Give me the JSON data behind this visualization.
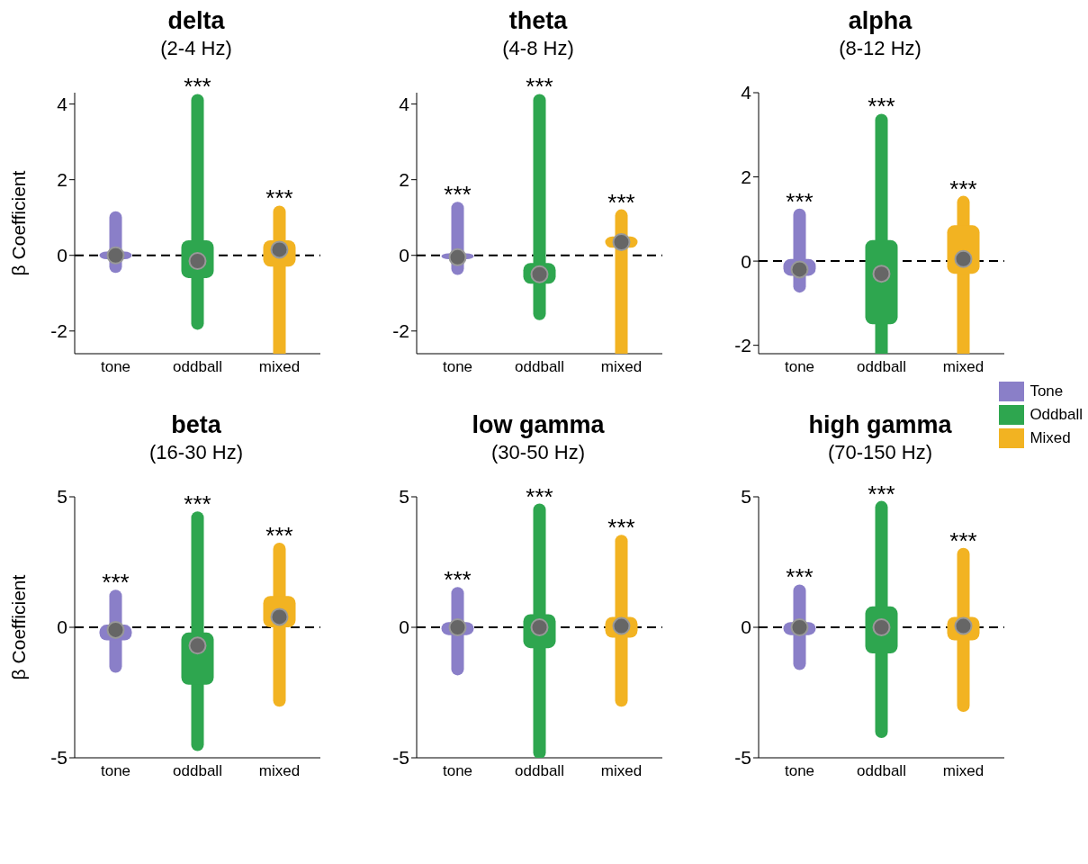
{
  "chart_data": [
    {
      "type": "box",
      "title": "delta",
      "subtitle": "(2-4 Hz)",
      "ylabel": "β Coefficient",
      "categories": [
        "tone",
        "oddball",
        "mixed"
      ],
      "ylim": [
        -2.6,
        4.3
      ],
      "yticks": [
        -2,
        0,
        2,
        4
      ],
      "series": [
        {
          "color": "#8a7fc8",
          "boxes": [
            {
              "low": -0.3,
              "q1": -0.1,
              "median": 0,
              "q3": 0.1,
              "high": 1.0
            },
            null,
            null
          ]
        },
        {
          "color": "#2ea64f",
          "boxes": [
            null,
            {
              "low": -1.8,
              "q1": -0.6,
              "median": -0.15,
              "q3": 0.4,
              "high": 4.1
            },
            null
          ]
        },
        {
          "color": "#f2b322",
          "boxes": [
            null,
            null,
            {
              "low": -2.6,
              "q1": -0.3,
              "median": 0.15,
              "q3": 0.4,
              "high": 1.15
            }
          ]
        }
      ],
      "ref_lines": [
        {
          "axis": "y",
          "value": 0,
          "line_style": "dashed"
        }
      ],
      "annotations": [
        {
          "text": "***",
          "x": "oddball",
          "y": 4.1
        },
        {
          "text": "***",
          "x": "mixed",
          "y": 1.15
        }
      ]
    },
    {
      "type": "box",
      "title": "theta",
      "subtitle": "(4-8 Hz)",
      "categories": [
        "tone",
        "oddball",
        "mixed"
      ],
      "ylim": [
        -2.6,
        4.3
      ],
      "yticks": [
        -2,
        0,
        2,
        4
      ],
      "series": [
        {
          "color": "#8a7fc8",
          "boxes": [
            {
              "low": -0.35,
              "q1": -0.1,
              "median": -0.05,
              "q3": 0.05,
              "high": 1.25
            },
            null,
            null
          ]
        },
        {
          "color": "#2ea64f",
          "boxes": [
            null,
            {
              "low": -1.55,
              "q1": -0.75,
              "median": -0.5,
              "q3": -0.2,
              "high": 4.1
            },
            null
          ]
        },
        {
          "color": "#f2b322",
          "boxes": [
            null,
            null,
            {
              "low": -2.6,
              "q1": 0.2,
              "median": 0.35,
              "q3": 0.5,
              "high": 1.05
            }
          ]
        }
      ],
      "ref_lines": [
        {
          "axis": "y",
          "value": 0,
          "line_style": "dashed"
        }
      ],
      "annotations": [
        {
          "text": "***",
          "x": "tone",
          "y": 1.25
        },
        {
          "text": "***",
          "x": "oddball",
          "y": 4.1
        },
        {
          "text": "***",
          "x": "mixed",
          "y": 1.05
        }
      ]
    },
    {
      "type": "box",
      "title": "alpha",
      "subtitle": "(8-12 Hz)",
      "categories": [
        "tone",
        "oddball",
        "mixed"
      ],
      "ylim": [
        -2.2,
        4
      ],
      "yticks": [
        -2,
        0,
        2,
        4
      ],
      "legend": "bottom right",
      "series": [
        {
          "name": "Tone",
          "color": "#8a7fc8",
          "boxes": [
            {
              "low": -0.6,
              "q1": -0.35,
              "median": -0.2,
              "q3": 0.05,
              "high": 1.1
            },
            null,
            null
          ]
        },
        {
          "name": "Oddball",
          "color": "#2ea64f",
          "boxes": [
            null,
            {
              "low": -2.2,
              "q1": -1.5,
              "median": -0.3,
              "q3": 0.5,
              "high": 3.35
            },
            null
          ]
        },
        {
          "name": "Mixed",
          "color": "#f2b322",
          "boxes": [
            null,
            null,
            {
              "low": -2.2,
              "q1": -0.3,
              "median": 0.05,
              "q3": 0.85,
              "high": 1.4
            }
          ]
        }
      ],
      "ref_lines": [
        {
          "axis": "y",
          "value": 0,
          "line_style": "dashed"
        }
      ],
      "annotations": [
        {
          "text": "***",
          "x": "tone",
          "y": 1.1
        },
        {
          "text": "***",
          "x": "oddball",
          "y": 3.35
        },
        {
          "text": "***",
          "x": "mixed",
          "y": 1.4
        }
      ]
    },
    {
      "type": "box",
      "title": "beta",
      "subtitle": "(16-30 Hz)",
      "ylabel": "β Coefficient",
      "categories": [
        "tone",
        "oddball",
        "mixed"
      ],
      "ylim": [
        -5,
        5
      ],
      "yticks": [
        -5,
        0,
        5
      ],
      "series": [
        {
          "color": "#8a7fc8",
          "boxes": [
            {
              "low": -1.5,
              "q1": -0.5,
              "median": -0.1,
              "q3": 0.1,
              "high": 1.2
            },
            null,
            null
          ]
        },
        {
          "color": "#2ea64f",
          "boxes": [
            null,
            {
              "low": -4.5,
              "q1": -2.2,
              "median": -0.7,
              "q3": -0.2,
              "high": 4.2
            },
            null
          ]
        },
        {
          "color": "#f2b322",
          "boxes": [
            null,
            null,
            {
              "low": -2.8,
              "q1": 0,
              "median": 0.4,
              "q3": 1.2,
              "high": 3.0
            }
          ]
        }
      ],
      "ref_lines": [
        {
          "axis": "y",
          "value": 0,
          "line_style": "dashed"
        }
      ],
      "annotations": [
        {
          "text": "***",
          "x": "tone",
          "y": 1.2
        },
        {
          "text": "***",
          "x": "oddball",
          "y": 4.2
        },
        {
          "text": "***",
          "x": "mixed",
          "y": 3.0
        }
      ]
    },
    {
      "type": "box",
      "title": "low gamma",
      "subtitle": "(30-50 Hz)",
      "categories": [
        "tone",
        "oddball",
        "mixed"
      ],
      "ylim": [
        -5,
        5
      ],
      "yticks": [
        -5,
        0,
        5
      ],
      "series": [
        {
          "color": "#8a7fc8",
          "boxes": [
            {
              "low": -1.6,
              "q1": -0.3,
              "median": 0,
              "q3": 0.2,
              "high": 1.3
            },
            null,
            null
          ]
        },
        {
          "color": "#2ea64f",
          "boxes": [
            null,
            {
              "low": -4.8,
              "q1": -0.8,
              "median": 0,
              "q3": 0.5,
              "high": 4.5
            },
            null
          ]
        },
        {
          "color": "#f2b322",
          "boxes": [
            null,
            null,
            {
              "low": -2.8,
              "q1": -0.4,
              "median": 0.05,
              "q3": 0.4,
              "high": 3.3
            }
          ]
        }
      ],
      "ref_lines": [
        {
          "axis": "y",
          "value": 0,
          "line_style": "dashed"
        }
      ],
      "annotations": [
        {
          "text": "***",
          "x": "tone",
          "y": 1.3
        },
        {
          "text": "***",
          "x": "oddball",
          "y": 4.5
        },
        {
          "text": "***",
          "x": "mixed",
          "y": 3.3
        }
      ]
    },
    {
      "type": "box",
      "title": "high gamma",
      "subtitle": "(70-150 Hz)",
      "categories": [
        "tone",
        "oddball",
        "mixed"
      ],
      "ylim": [
        -5,
        5
      ],
      "yticks": [
        -5,
        0,
        5
      ],
      "series": [
        {
          "color": "#8a7fc8",
          "boxes": [
            {
              "low": -1.4,
              "q1": -0.3,
              "median": 0,
              "q3": 0.2,
              "high": 1.4
            },
            null,
            null
          ]
        },
        {
          "color": "#2ea64f",
          "boxes": [
            null,
            {
              "low": -4,
              "q1": -1,
              "median": 0,
              "q3": 0.8,
              "high": 4.6
            },
            null
          ]
        },
        {
          "color": "#f2b322",
          "boxes": [
            null,
            null,
            {
              "low": -3,
              "q1": -0.5,
              "median": 0.05,
              "q3": 0.4,
              "high": 2.8
            }
          ]
        }
      ],
      "ref_lines": [
        {
          "axis": "y",
          "value": 0,
          "line_style": "dashed"
        }
      ],
      "annotations": [
        {
          "text": "***",
          "x": "tone",
          "y": 1.4
        },
        {
          "text": "***",
          "x": "oddball",
          "y": 4.6
        },
        {
          "text": "***",
          "x": "mixed",
          "y": 2.8
        }
      ]
    }
  ]
}
